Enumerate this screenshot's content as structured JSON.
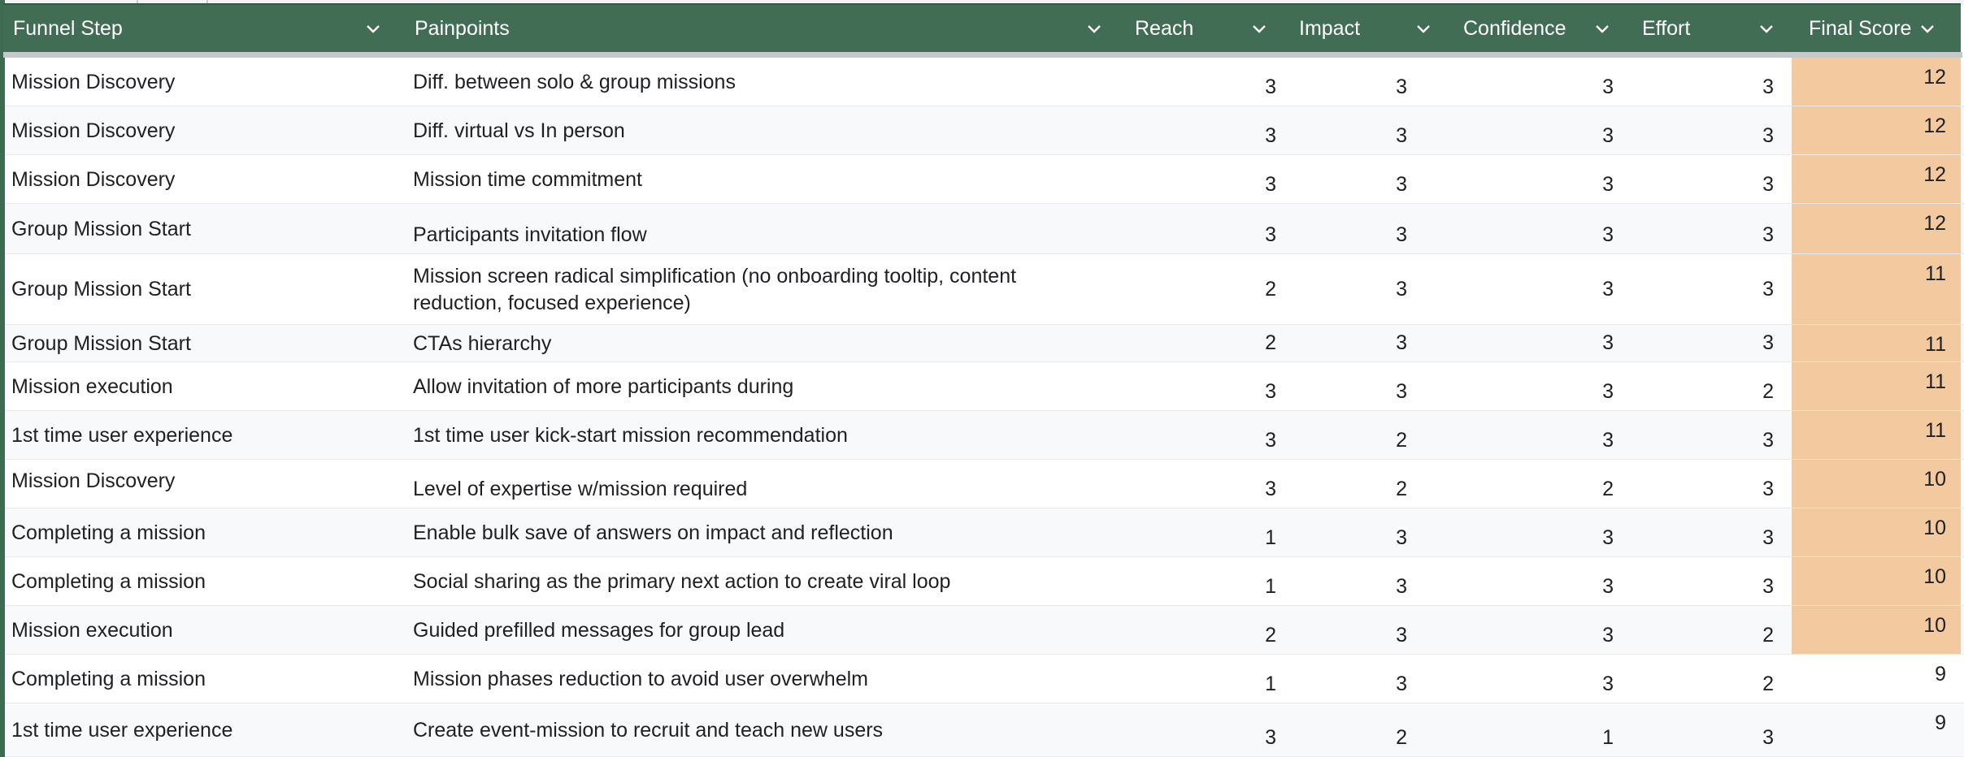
{
  "columns": [
    {
      "key": "step",
      "label": "Funnel Step"
    },
    {
      "key": "painpoint",
      "label": "Painpoints"
    },
    {
      "key": "reach",
      "label": "Reach"
    },
    {
      "key": "impact",
      "label": "Impact"
    },
    {
      "key": "confidence",
      "label": "Confidence"
    },
    {
      "key": "effort",
      "label": "Effort"
    },
    {
      "key": "score",
      "label": "Final Score"
    }
  ],
  "colors": {
    "header_bg": "#426d55",
    "header_text": "#ffffff",
    "highlight": "#f3c99f",
    "body_text": "#202124"
  },
  "highlight_threshold": 10,
  "rows": [
    {
      "step": "Mission Discovery",
      "painpoint": "Diff. between solo & group missions",
      "reach": "3",
      "impact": "3",
      "confidence": "3",
      "effort": "3",
      "score": "12"
    },
    {
      "step": "Mission Discovery",
      "painpoint": "Diff. virtual vs In person",
      "reach": "3",
      "impact": "3",
      "confidence": "3",
      "effort": "3",
      "score": "12"
    },
    {
      "step": "Mission Discovery",
      "painpoint": "Mission time commitment",
      "reach": "3",
      "impact": "3",
      "confidence": "3",
      "effort": "3",
      "score": "12"
    },
    {
      "step": "Group Mission Start",
      "painpoint": "Participants invitation flow",
      "reach": "3",
      "impact": "3",
      "confidence": "3",
      "effort": "3",
      "score": "12"
    },
    {
      "step": "Group Mission Start",
      "painpoint": "Mission screen radical simplification (no onboarding tooltip, content reduction, focused experience)",
      "reach": "2",
      "impact": "3",
      "confidence": "3",
      "effort": "3",
      "score": "11"
    },
    {
      "step": "Group Mission Start",
      "painpoint": "CTAs hierarchy",
      "reach": "2",
      "impact": "3",
      "confidence": "3",
      "effort": "3",
      "score": "11"
    },
    {
      "step": "Mission execution",
      "painpoint": "Allow invitation of more participants during",
      "reach": "3",
      "impact": "3",
      "confidence": "3",
      "effort": "2",
      "score": "11"
    },
    {
      "step": "1st time user experience",
      "painpoint": "1st time user kick-start mission recommendation",
      "reach": "3",
      "impact": "2",
      "confidence": "3",
      "effort": "3",
      "score": "11"
    },
    {
      "step": "Mission Discovery",
      "painpoint": "Level of expertise w/mission required",
      "reach": "3",
      "impact": "2",
      "confidence": "2",
      "effort": "3",
      "score": "10"
    },
    {
      "step": "Completing a mission",
      "painpoint": "Enable bulk save of answers on impact and reflection",
      "reach": "1",
      "impact": "3",
      "confidence": "3",
      "effort": "3",
      "score": "10"
    },
    {
      "step": "Completing a mission",
      "painpoint": "Social sharing as the primary next action to create viral loop",
      "reach": "1",
      "impact": "3",
      "confidence": "3",
      "effort": "3",
      "score": "10"
    },
    {
      "step": "Mission execution",
      "painpoint": "Guided prefilled messages for group lead",
      "reach": "2",
      "impact": "3",
      "confidence": "3",
      "effort": "2",
      "score": "10"
    },
    {
      "step": "Completing a mission",
      "painpoint": "Mission phases reduction to avoid user overwhelm",
      "reach": "1",
      "impact": "3",
      "confidence": "3",
      "effort": "2",
      "score": "9"
    },
    {
      "step": "1st time user experience",
      "painpoint": "Create event-mission to recruit and teach new users",
      "reach": "3",
      "impact": "2",
      "confidence": "1",
      "effort": "3",
      "score": "9"
    }
  ]
}
